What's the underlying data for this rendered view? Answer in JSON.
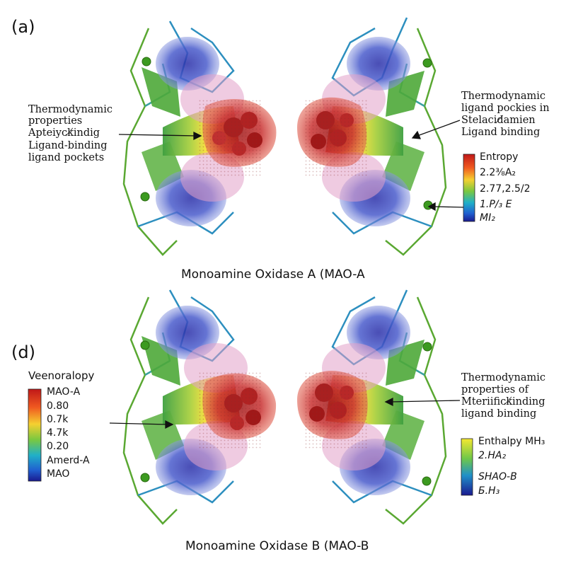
{
  "panels": {
    "a": {
      "letter": "(a)",
      "caption": "Monoamine Oxidase A (MAO-A",
      "annotation_left": [
        "Thermodynamic",
        "properties",
        "Apteiyck̸indig",
        "Ligand-binding",
        "ligand pockets"
      ],
      "annotation_right": [
        "Thermodynamic",
        "ligand  pockies in",
        "Stelacid̸amien",
        "Ligand binding"
      ],
      "colorbar": {
        "title": "Entropy",
        "labels": [
          "2.2⅜A₂",
          "2.77,2.5/2",
          "1.P/₃ E",
          "MI₂"
        ]
      }
    },
    "d": {
      "letter": "(d)",
      "caption": "Monoamine Oxidase B (MAO-B",
      "annotation_right": [
        "Thermodynamic",
        "properties  of",
        "Mteriifick̸inding",
        "ligand binding"
      ],
      "colorbar_left": {
        "title": "Veenoralopy",
        "labels": [
          "MAO-A",
          "0.80",
          "0.7k",
          "4.7k",
          "0.20",
          "Amerd-A",
          "MAO"
        ]
      },
      "colorbar_right": {
        "labels": [
          "Enthalpy MH₃",
          "2.HA₂",
          "SHAO-B",
          "Б.H₃"
        ]
      }
    }
  },
  "colors": {
    "hot": "#c62020",
    "warm": "#f0a020",
    "mid": "#f5e03a",
    "cool": "#3ab0d0",
    "cold": "#2035b0",
    "backbone": "#5aa832",
    "backbone_blue": "#2d8fbf",
    "atom": "#3c9a20"
  }
}
